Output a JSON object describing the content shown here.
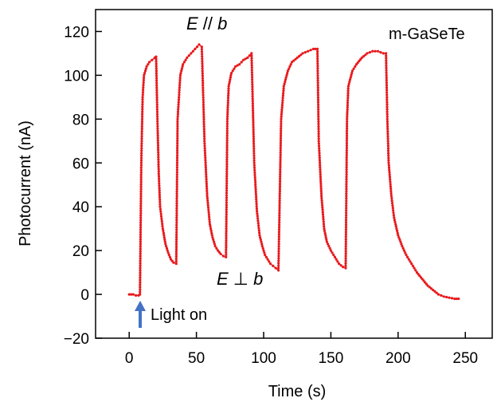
{
  "chart_data": {
    "type": "line",
    "title": "",
    "xlabel": "Time (s)",
    "ylabel": "Photocurrent (nA)",
    "xlim": [
      -25,
      270
    ],
    "ylim": [
      -20,
      130
    ],
    "x_ticks": [
      0,
      50,
      100,
      150,
      200,
      250
    ],
    "y_ticks": [
      -20,
      0,
      20,
      40,
      60,
      80,
      100,
      120
    ],
    "grid": false,
    "legend": "none",
    "series_color": "#e8191c",
    "marker": "dot",
    "annotations": {
      "sample_label": "m-GaSeTe",
      "parallel": {
        "E": "E",
        "op": " // ",
        "b": "b"
      },
      "perp": {
        "E": "E",
        "op": " ⊥ ",
        "b": "b"
      },
      "light_on": "Light on",
      "light_on_arrow_color": "#4472c4"
    },
    "series": [
      {
        "values_description_free": true,
        "points": [
          [
            0,
            0
          ],
          [
            3,
            0
          ],
          [
            5,
            -0.5
          ],
          [
            7,
            -0.5
          ],
          [
            8,
            0
          ],
          [
            9,
            60
          ],
          [
            10,
            90
          ],
          [
            11,
            100
          ],
          [
            13,
            104
          ],
          [
            15,
            106
          ],
          [
            17,
            107
          ],
          [
            19,
            108
          ],
          [
            20,
            108.5
          ],
          [
            21,
            80
          ],
          [
            22,
            55
          ],
          [
            23,
            40
          ],
          [
            25,
            30
          ],
          [
            27,
            23
          ],
          [
            29,
            19
          ],
          [
            31,
            16
          ],
          [
            33,
            14.5
          ],
          [
            35,
            14
          ],
          [
            36,
            80
          ],
          [
            38,
            100
          ],
          [
            40,
            105
          ],
          [
            43,
            108
          ],
          [
            46,
            110
          ],
          [
            49,
            112
          ],
          [
            52,
            114
          ],
          [
            54,
            113
          ],
          [
            56,
            70
          ],
          [
            58,
            45
          ],
          [
            60,
            32
          ],
          [
            62,
            26
          ],
          [
            64,
            22
          ],
          [
            66,
            20
          ],
          [
            68,
            18.5
          ],
          [
            70,
            17.5
          ],
          [
            72,
            17
          ],
          [
            73,
            80
          ],
          [
            74,
            95
          ],
          [
            76,
            101
          ],
          [
            79,
            104
          ],
          [
            82,
            105
          ],
          [
            85,
            107
          ],
          [
            88,
            108
          ],
          [
            91,
            110
          ],
          [
            93,
            60
          ],
          [
            95,
            38
          ],
          [
            97,
            27
          ],
          [
            99,
            22
          ],
          [
            101,
            18
          ],
          [
            103,
            16
          ],
          [
            105,
            14
          ],
          [
            107,
            13
          ],
          [
            109,
            12
          ],
          [
            111,
            11
          ],
          [
            113,
            80
          ],
          [
            115,
            95
          ],
          [
            118,
            102
          ],
          [
            121,
            106
          ],
          [
            125,
            108
          ],
          [
            129,
            110
          ],
          [
            133,
            111
          ],
          [
            137,
            112
          ],
          [
            140,
            112
          ],
          [
            141,
            70
          ],
          [
            143,
            45
          ],
          [
            145,
            30
          ],
          [
            147,
            24
          ],
          [
            150,
            20
          ],
          [
            153,
            17
          ],
          [
            156,
            14
          ],
          [
            159,
            12.5
          ],
          [
            161,
            12
          ],
          [
            162,
            80
          ],
          [
            163,
            95
          ],
          [
            166,
            102
          ],
          [
            169,
            105
          ],
          [
            173,
            108
          ],
          [
            177,
            110
          ],
          [
            181,
            111
          ],
          [
            185,
            111
          ],
          [
            189,
            110
          ],
          [
            191,
            110
          ],
          [
            192,
            80
          ],
          [
            193,
            60
          ],
          [
            195,
            45
          ],
          [
            197,
            35
          ],
          [
            200,
            27
          ],
          [
            203,
            22
          ],
          [
            206,
            18
          ],
          [
            210,
            14
          ],
          [
            214,
            10
          ],
          [
            218,
            7
          ],
          [
            222,
            4
          ],
          [
            226,
            2
          ],
          [
            230,
            0
          ],
          [
            234,
            -1
          ],
          [
            238,
            -1.5
          ],
          [
            242,
            -2
          ],
          [
            245,
            -2
          ]
        ]
      }
    ]
  }
}
